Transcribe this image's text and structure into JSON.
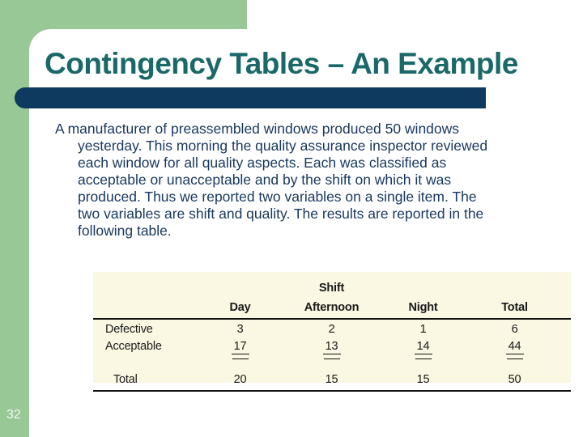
{
  "slide": {
    "title": "Contingency Tables – An Example",
    "page_number": "32"
  },
  "body": {
    "lines": [
      "A manufacturer of preassembled windows produced 50 windows",
      "yesterday. This morning the quality assurance inspector reviewed",
      "each window for all quality aspects. Each was classified as",
      "acceptable or unacceptable and by the shift on which it was",
      "produced. Thus we reported two variables on a single item. The",
      "two variables are shift and quality. The results are reported in the",
      "following table."
    ]
  },
  "table": {
    "group_header": "Shift",
    "columns": [
      "Day",
      "Afternoon",
      "Night",
      "Total"
    ],
    "rows": [
      {
        "label": "Defective",
        "values": [
          "3",
          "2",
          "1",
          "6"
        ],
        "sum_underline": false,
        "indent": false
      },
      {
        "label": "Acceptable",
        "values": [
          "17",
          "13",
          "14",
          "44"
        ],
        "sum_underline": true,
        "indent": false
      },
      {
        "label": "Total",
        "values": [
          "20",
          "15",
          "15",
          "50"
        ],
        "sum_underline": false,
        "indent": true
      }
    ]
  },
  "colors": {
    "accent_green": "#99C897",
    "bar_navy": "#0D3A5E",
    "title_teal": "#1A6868",
    "body_text_navy": "#17375E",
    "table_background": "#FAF8E2"
  }
}
